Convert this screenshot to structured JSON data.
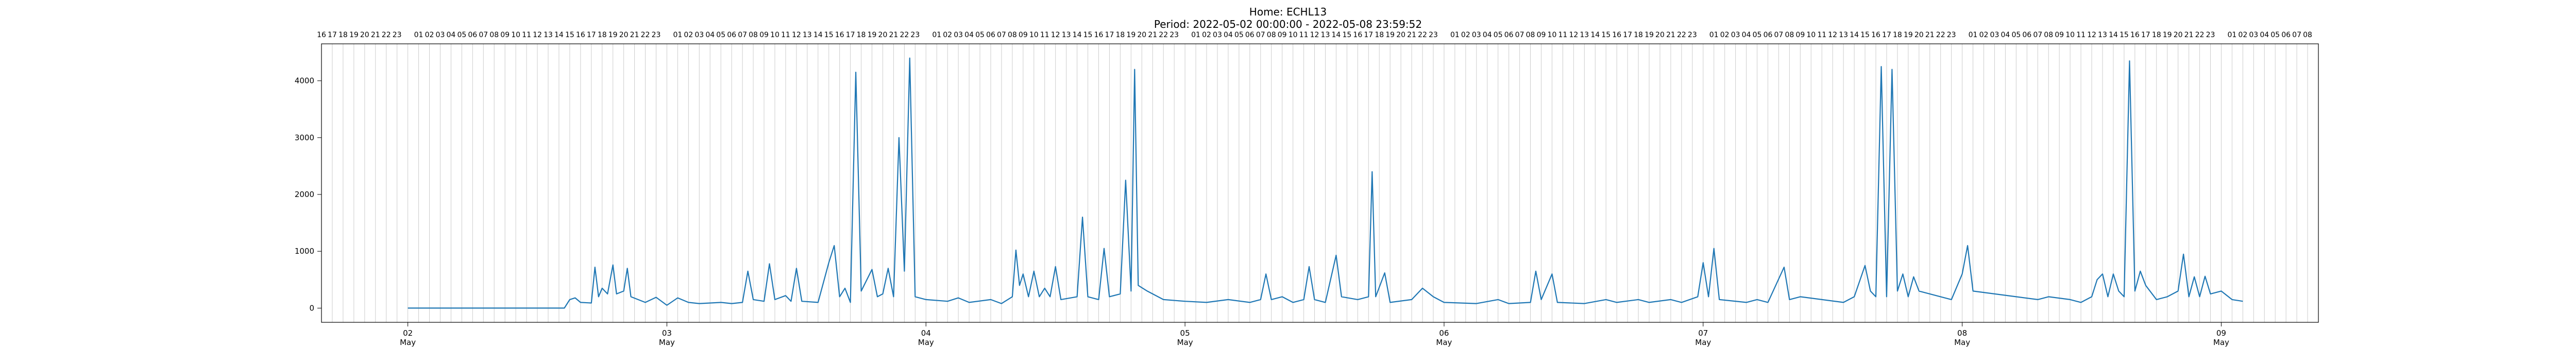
{
  "chart_data": {
    "type": "line",
    "title": "Home: ECHL13",
    "subtitle": "Period: 2022-05-02 00:00:00 - 2022-05-08 23:59:52",
    "xlabel": "",
    "ylabel": "",
    "xlim": [
      "2022-05-01 16:00",
      "2022-05-09 09:00"
    ],
    "ylim": [
      -250,
      4650
    ],
    "yticks": [
      0,
      1000,
      2000,
      3000,
      4000
    ],
    "grid": "vertical hourly lines",
    "legend": "none",
    "line_color": "#1f77b4",
    "day_ticks": [
      {
        "date": "2022-05-02",
        "day": "02",
        "month": "May"
      },
      {
        "date": "2022-05-03",
        "day": "03",
        "month": "May"
      },
      {
        "date": "2022-05-04",
        "day": "04",
        "month": "May"
      },
      {
        "date": "2022-05-05",
        "day": "05",
        "month": "May"
      },
      {
        "date": "2022-05-06",
        "day": "06",
        "month": "May"
      },
      {
        "date": "2022-05-07",
        "day": "07",
        "month": "May"
      },
      {
        "date": "2022-05-08",
        "day": "08",
        "month": "May"
      },
      {
        "date": "2022-05-09",
        "day": "09",
        "month": "May"
      }
    ],
    "hour_labels_first": [
      "16",
      "17",
      "18",
      "19",
      "20",
      "21",
      "22",
      "23"
    ],
    "hour_labels_day": [
      "01",
      "02",
      "03",
      "04",
      "05",
      "06",
      "07",
      "08",
      "09",
      "10",
      "11",
      "12",
      "13",
      "14",
      "15",
      "16",
      "17",
      "18",
      "19",
      "20",
      "21",
      "22",
      "23"
    ],
    "hour_labels_last": [
      "01",
      "02",
      "03",
      "04",
      "05",
      "06",
      "07",
      "08"
    ],
    "series": [
      {
        "points": [
          [
            "2022-05-02 00:00",
            0
          ],
          [
            "2022-05-02 12:00",
            0
          ],
          [
            "2022-05-02 14:30",
            0
          ],
          [
            "2022-05-02 15:00",
            150
          ],
          [
            "2022-05-02 15:30",
            180
          ],
          [
            "2022-05-02 16:00",
            100
          ],
          [
            "2022-05-02 17:00",
            90
          ],
          [
            "2022-05-02 17:20",
            720
          ],
          [
            "2022-05-02 17:40",
            200
          ],
          [
            "2022-05-02 18:00",
            350
          ],
          [
            "2022-05-02 18:30",
            250
          ],
          [
            "2022-05-02 19:00",
            760
          ],
          [
            "2022-05-02 19:20",
            250
          ],
          [
            "2022-05-02 20:00",
            300
          ],
          [
            "2022-05-02 20:20",
            700
          ],
          [
            "2022-05-02 20:40",
            200
          ],
          [
            "2022-05-02 22:00",
            100
          ],
          [
            "2022-05-02 23:00",
            190
          ],
          [
            "2022-05-03 00:00",
            50
          ],
          [
            "2022-05-03 01:00",
            180
          ],
          [
            "2022-05-03 02:00",
            100
          ],
          [
            "2022-05-03 03:00",
            80
          ],
          [
            "2022-05-03 05:00",
            100
          ],
          [
            "2022-05-03 06:00",
            80
          ],
          [
            "2022-05-03 07:00",
            100
          ],
          [
            "2022-05-03 07:30",
            650
          ],
          [
            "2022-05-03 08:00",
            150
          ],
          [
            "2022-05-03 09:00",
            120
          ],
          [
            "2022-05-03 09:30",
            780
          ],
          [
            "2022-05-03 10:00",
            150
          ],
          [
            "2022-05-03 11:00",
            220
          ],
          [
            "2022-05-03 11:30",
            120
          ],
          [
            "2022-05-03 12:00",
            700
          ],
          [
            "2022-05-03 12:30",
            120
          ],
          [
            "2022-05-03 14:00",
            100
          ],
          [
            "2022-05-03 15:00",
            800
          ],
          [
            "2022-05-03 15:30",
            1100
          ],
          [
            "2022-05-03 16:00",
            200
          ],
          [
            "2022-05-03 16:30",
            350
          ],
          [
            "2022-05-03 17:00",
            100
          ],
          [
            "2022-05-03 17:30",
            4150
          ],
          [
            "2022-05-03 18:00",
            300
          ],
          [
            "2022-05-03 19:00",
            680
          ],
          [
            "2022-05-03 19:30",
            200
          ],
          [
            "2022-05-03 20:00",
            250
          ],
          [
            "2022-05-03 20:30",
            700
          ],
          [
            "2022-05-03 21:00",
            200
          ],
          [
            "2022-05-03 21:30",
            3000
          ],
          [
            "2022-05-03 22:00",
            650
          ],
          [
            "2022-05-03 22:30",
            4400
          ],
          [
            "2022-05-03 23:00",
            200
          ],
          [
            "2022-05-04 00:00",
            150
          ],
          [
            "2022-05-04 02:00",
            120
          ],
          [
            "2022-05-04 03:00",
            180
          ],
          [
            "2022-05-04 04:00",
            100
          ],
          [
            "2022-05-04 06:00",
            150
          ],
          [
            "2022-05-04 07:00",
            80
          ],
          [
            "2022-05-04 08:00",
            200
          ],
          [
            "2022-05-04 08:20",
            1020
          ],
          [
            "2022-05-04 08:40",
            400
          ],
          [
            "2022-05-04 09:00",
            600
          ],
          [
            "2022-05-04 09:30",
            200
          ],
          [
            "2022-05-04 10:00",
            650
          ],
          [
            "2022-05-04 10:30",
            200
          ],
          [
            "2022-05-04 11:00",
            350
          ],
          [
            "2022-05-04 11:30",
            200
          ],
          [
            "2022-05-04 12:00",
            730
          ],
          [
            "2022-05-04 12:30",
            150
          ],
          [
            "2022-05-04 14:00",
            200
          ],
          [
            "2022-05-04 14:30",
            1600
          ],
          [
            "2022-05-04 15:00",
            200
          ],
          [
            "2022-05-04 16:00",
            150
          ],
          [
            "2022-05-04 16:30",
            1050
          ],
          [
            "2022-05-04 17:00",
            200
          ],
          [
            "2022-05-04 18:00",
            250
          ],
          [
            "2022-05-04 18:30",
            2250
          ],
          [
            "2022-05-04 19:00",
            300
          ],
          [
            "2022-05-04 19:20",
            4200
          ],
          [
            "2022-05-04 19:40",
            400
          ],
          [
            "2022-05-04 20:30",
            300
          ],
          [
            "2022-05-04 22:00",
            150
          ],
          [
            "2022-05-05 00:00",
            120
          ],
          [
            "2022-05-05 02:00",
            100
          ],
          [
            "2022-05-05 04:00",
            150
          ],
          [
            "2022-05-05 06:00",
            100
          ],
          [
            "2022-05-05 07:00",
            150
          ],
          [
            "2022-05-05 07:30",
            600
          ],
          [
            "2022-05-05 08:00",
            150
          ],
          [
            "2022-05-05 09:00",
            200
          ],
          [
            "2022-05-05 10:00",
            100
          ],
          [
            "2022-05-05 11:00",
            150
          ],
          [
            "2022-05-05 11:30",
            730
          ],
          [
            "2022-05-05 12:00",
            150
          ],
          [
            "2022-05-05 13:00",
            100
          ],
          [
            "2022-05-05 14:00",
            930
          ],
          [
            "2022-05-05 14:30",
            200
          ],
          [
            "2022-05-05 16:00",
            150
          ],
          [
            "2022-05-05 17:00",
            200
          ],
          [
            "2022-05-05 17:20",
            2400
          ],
          [
            "2022-05-05 17:40",
            200
          ],
          [
            "2022-05-05 18:30",
            620
          ],
          [
            "2022-05-05 19:00",
            100
          ],
          [
            "2022-05-05 21:00",
            150
          ],
          [
            "2022-05-05 22:00",
            350
          ],
          [
            "2022-05-05 23:00",
            200
          ],
          [
            "2022-05-06 00:00",
            100
          ],
          [
            "2022-05-06 03:00",
            80
          ],
          [
            "2022-05-06 05:00",
            150
          ],
          [
            "2022-05-06 06:00",
            80
          ],
          [
            "2022-05-06 08:00",
            100
          ],
          [
            "2022-05-06 08:30",
            650
          ],
          [
            "2022-05-06 09:00",
            150
          ],
          [
            "2022-05-06 10:00",
            600
          ],
          [
            "2022-05-06 10:30",
            100
          ],
          [
            "2022-05-06 13:00",
            80
          ],
          [
            "2022-05-06 15:00",
            150
          ],
          [
            "2022-05-06 16:00",
            100
          ],
          [
            "2022-05-06 18:00",
            150
          ],
          [
            "2022-05-06 19:00",
            100
          ],
          [
            "2022-05-06 21:00",
            150
          ],
          [
            "2022-05-06 22:00",
            100
          ],
          [
            "2022-05-06 23:30",
            200
          ],
          [
            "2022-05-07 00:00",
            800
          ],
          [
            "2022-05-07 00:30",
            200
          ],
          [
            "2022-05-07 01:00",
            1050
          ],
          [
            "2022-05-07 01:30",
            150
          ],
          [
            "2022-05-07 04:00",
            100
          ],
          [
            "2022-05-07 05:00",
            150
          ],
          [
            "2022-05-07 06:00",
            100
          ],
          [
            "2022-05-07 07:30",
            720
          ],
          [
            "2022-05-07 08:00",
            150
          ],
          [
            "2022-05-07 09:00",
            200
          ],
          [
            "2022-05-07 11:00",
            150
          ],
          [
            "2022-05-07 13:00",
            100
          ],
          [
            "2022-05-07 14:00",
            200
          ],
          [
            "2022-05-07 15:00",
            750
          ],
          [
            "2022-05-07 15:30",
            300
          ],
          [
            "2022-05-07 16:00",
            200
          ],
          [
            "2022-05-07 16:30",
            4250
          ],
          [
            "2022-05-07 17:00",
            200
          ],
          [
            "2022-05-07 17:30",
            4200
          ],
          [
            "2022-05-07 18:00",
            300
          ],
          [
            "2022-05-07 18:30",
            600
          ],
          [
            "2022-05-07 19:00",
            200
          ],
          [
            "2022-05-07 19:30",
            550
          ],
          [
            "2022-05-07 20:00",
            300
          ],
          [
            "2022-05-07 21:00",
            250
          ],
          [
            "2022-05-07 22:00",
            200
          ],
          [
            "2022-05-07 23:00",
            150
          ],
          [
            "2022-05-08 00:00",
            600
          ],
          [
            "2022-05-08 00:30",
            1100
          ],
          [
            "2022-05-08 01:00",
            300
          ],
          [
            "2022-05-08 03:00",
            250
          ],
          [
            "2022-05-08 05:00",
            200
          ],
          [
            "2022-05-08 07:00",
            150
          ],
          [
            "2022-05-08 08:00",
            200
          ],
          [
            "2022-05-08 10:00",
            150
          ],
          [
            "2022-05-08 11:00",
            100
          ],
          [
            "2022-05-08 12:00",
            200
          ],
          [
            "2022-05-08 12:30",
            500
          ],
          [
            "2022-05-08 13:00",
            600
          ],
          [
            "2022-05-08 13:30",
            200
          ],
          [
            "2022-05-08 14:00",
            600
          ],
          [
            "2022-05-08 14:30",
            300
          ],
          [
            "2022-05-08 15:00",
            200
          ],
          [
            "2022-05-08 15:30",
            4350
          ],
          [
            "2022-05-08 16:00",
            300
          ],
          [
            "2022-05-08 16:30",
            650
          ],
          [
            "2022-05-08 17:00",
            400
          ],
          [
            "2022-05-08 18:00",
            150
          ],
          [
            "2022-05-08 19:00",
            200
          ],
          [
            "2022-05-08 20:00",
            300
          ],
          [
            "2022-05-08 20:30",
            950
          ],
          [
            "2022-05-08 21:00",
            200
          ],
          [
            "2022-05-08 21:30",
            550
          ],
          [
            "2022-05-08 22:00",
            200
          ],
          [
            "2022-05-08 22:30",
            560
          ],
          [
            "2022-05-08 23:00",
            250
          ],
          [
            "2022-05-09 00:00",
            300
          ],
          [
            "2022-05-09 01:00",
            150
          ],
          [
            "2022-05-09 02:00",
            120
          ]
        ]
      }
    ]
  }
}
